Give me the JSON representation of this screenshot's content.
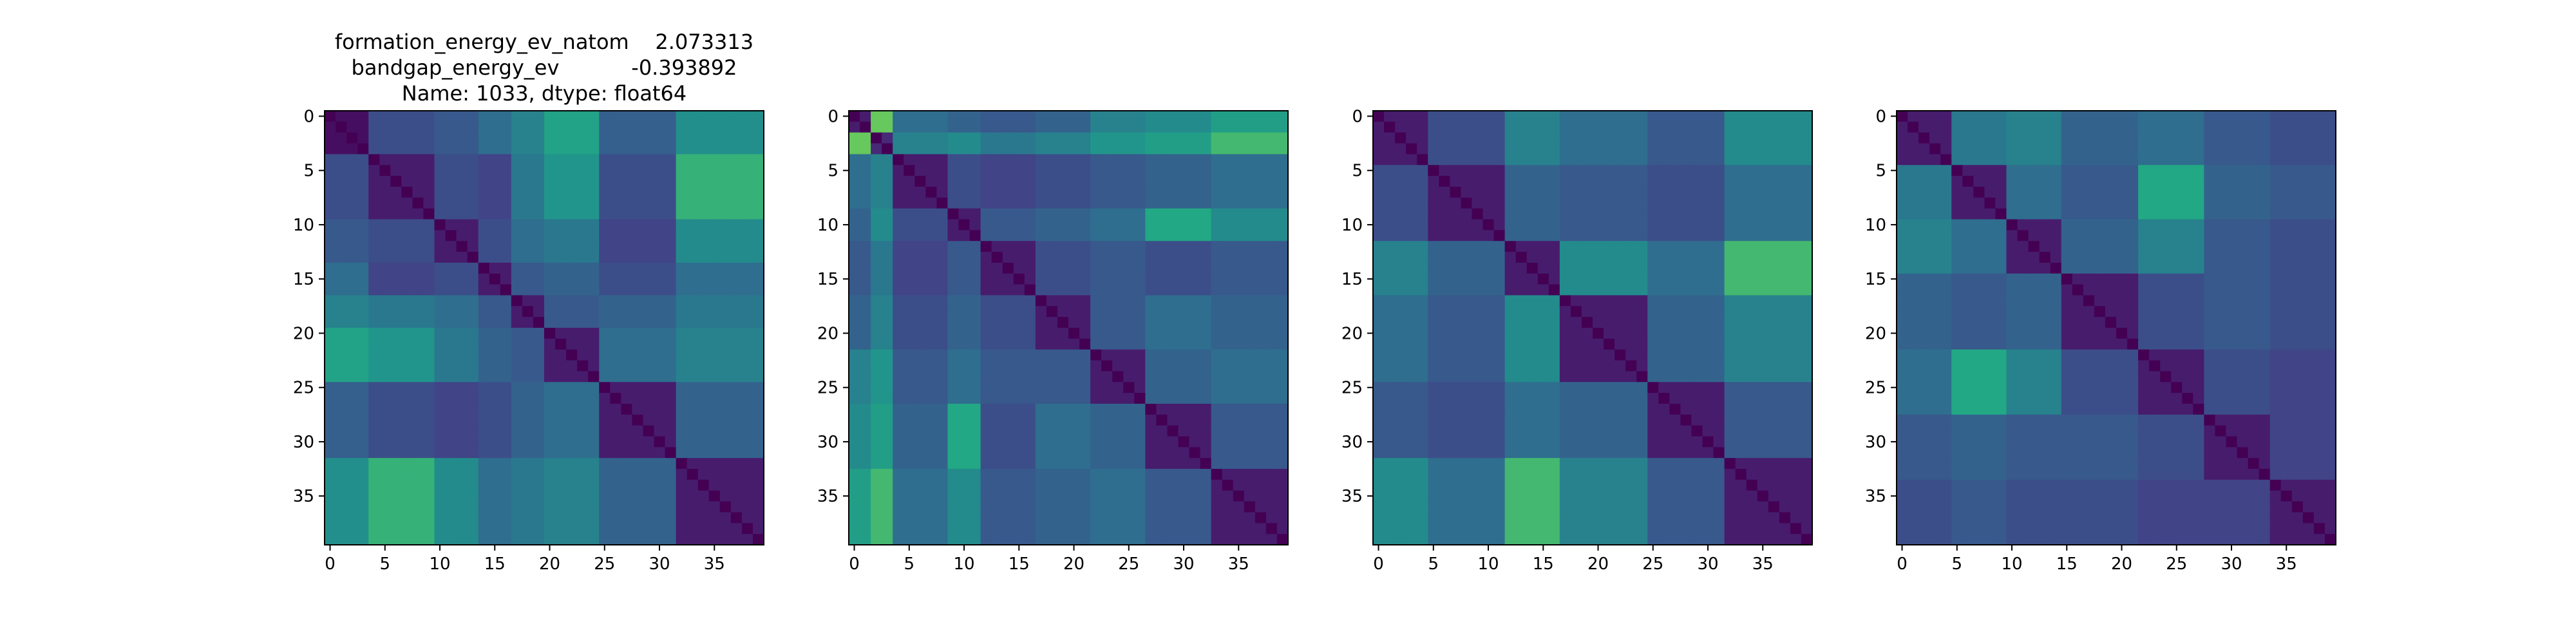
{
  "chart_data": [
    {
      "type": "heatmap",
      "title_lines": [
        "formation_energy_ev_natom    2.073313",
        "bandgap_energy_ev           -0.393892",
        "Name: 1033, dtype: float64"
      ],
      "size": 40,
      "colormap": "viridis",
      "xticks": [
        0,
        5,
        10,
        15,
        20,
        25,
        30,
        35
      ],
      "yticks": [
        0,
        5,
        10,
        15,
        20,
        25,
        30,
        35
      ],
      "blocks": [
        [
          0,
          4
        ],
        [
          4,
          10
        ],
        [
          10,
          14
        ],
        [
          14,
          17
        ],
        [
          17,
          20
        ],
        [
          20,
          25
        ],
        [
          25,
          32
        ],
        [
          32,
          40
        ]
      ],
      "block_values": [
        [
          0.05,
          0.3,
          0.35,
          0.45,
          0.55,
          0.72,
          0.38,
          0.62
        ],
        [
          0.3,
          0.1,
          0.3,
          0.25,
          0.5,
          0.65,
          0.3,
          0.78
        ],
        [
          0.35,
          0.3,
          0.1,
          0.3,
          0.45,
          0.5,
          0.25,
          0.6
        ],
        [
          0.45,
          0.25,
          0.3,
          0.1,
          0.35,
          0.4,
          0.3,
          0.45
        ],
        [
          0.55,
          0.5,
          0.45,
          0.35,
          0.1,
          0.35,
          0.4,
          0.5
        ],
        [
          0.72,
          0.65,
          0.5,
          0.4,
          0.35,
          0.1,
          0.45,
          0.55
        ],
        [
          0.38,
          0.3,
          0.25,
          0.3,
          0.4,
          0.45,
          0.1,
          0.4
        ],
        [
          0.62,
          0.78,
          0.6,
          0.45,
          0.5,
          0.55,
          0.4,
          0.1
        ]
      ]
    },
    {
      "type": "heatmap",
      "title_lines": [],
      "size": 40,
      "colormap": "viridis",
      "xticks": [
        0,
        5,
        10,
        15,
        20,
        25,
        30,
        35
      ],
      "yticks": [
        0,
        5,
        10,
        15,
        20,
        25,
        30,
        35
      ],
      "blocks": [
        [
          0,
          2
        ],
        [
          2,
          4
        ],
        [
          4,
          9
        ],
        [
          9,
          12
        ],
        [
          12,
          17
        ],
        [
          17,
          22
        ],
        [
          22,
          27
        ],
        [
          27,
          33
        ],
        [
          33,
          40
        ]
      ],
      "block_values": [
        [
          0.1,
          0.85,
          0.45,
          0.4,
          0.35,
          0.4,
          0.55,
          0.6,
          0.7
        ],
        [
          0.85,
          0.15,
          0.55,
          0.6,
          0.5,
          0.55,
          0.65,
          0.7,
          0.8
        ],
        [
          0.45,
          0.55,
          0.1,
          0.3,
          0.25,
          0.3,
          0.35,
          0.4,
          0.45
        ],
        [
          0.4,
          0.6,
          0.3,
          0.1,
          0.35,
          0.4,
          0.45,
          0.75,
          0.6
        ],
        [
          0.35,
          0.5,
          0.25,
          0.35,
          0.1,
          0.3,
          0.35,
          0.3,
          0.35
        ],
        [
          0.4,
          0.55,
          0.3,
          0.4,
          0.3,
          0.1,
          0.35,
          0.45,
          0.4
        ],
        [
          0.55,
          0.65,
          0.35,
          0.45,
          0.35,
          0.35,
          0.1,
          0.4,
          0.45
        ],
        [
          0.6,
          0.7,
          0.4,
          0.75,
          0.3,
          0.45,
          0.4,
          0.1,
          0.35
        ],
        [
          0.7,
          0.8,
          0.45,
          0.6,
          0.35,
          0.4,
          0.45,
          0.35,
          0.1
        ]
      ]
    },
    {
      "type": "heatmap",
      "title_lines": [],
      "size": 40,
      "colormap": "viridis",
      "xticks": [
        0,
        5,
        10,
        15,
        20,
        25,
        30,
        35
      ],
      "yticks": [
        0,
        5,
        10,
        15,
        20,
        25,
        30,
        35
      ],
      "blocks": [
        [
          0,
          5
        ],
        [
          5,
          12
        ],
        [
          12,
          17
        ],
        [
          17,
          25
        ],
        [
          25,
          32
        ],
        [
          32,
          40
        ]
      ],
      "block_values": [
        [
          0.1,
          0.3,
          0.55,
          0.45,
          0.35,
          0.6
        ],
        [
          0.3,
          0.1,
          0.4,
          0.35,
          0.3,
          0.45
        ],
        [
          0.55,
          0.4,
          0.1,
          0.6,
          0.45,
          0.8
        ],
        [
          0.45,
          0.35,
          0.6,
          0.1,
          0.4,
          0.55
        ],
        [
          0.35,
          0.3,
          0.45,
          0.4,
          0.1,
          0.35
        ],
        [
          0.6,
          0.45,
          0.8,
          0.55,
          0.35,
          0.1
        ]
      ]
    },
    {
      "type": "heatmap",
      "title_lines": [],
      "size": 40,
      "colormap": "viridis",
      "xticks": [
        0,
        5,
        10,
        15,
        20,
        25,
        30,
        35
      ],
      "yticks": [
        0,
        5,
        10,
        15,
        20,
        25,
        30,
        35
      ],
      "blocks": [
        [
          0,
          5
        ],
        [
          5,
          10
        ],
        [
          10,
          15
        ],
        [
          15,
          22
        ],
        [
          22,
          28
        ],
        [
          28,
          34
        ],
        [
          34,
          40
        ]
      ],
      "block_values": [
        [
          0.1,
          0.5,
          0.55,
          0.4,
          0.45,
          0.35,
          0.3
        ],
        [
          0.5,
          0.1,
          0.45,
          0.35,
          0.75,
          0.4,
          0.35
        ],
        [
          0.55,
          0.45,
          0.1,
          0.4,
          0.55,
          0.35,
          0.3
        ],
        [
          0.4,
          0.35,
          0.4,
          0.1,
          0.3,
          0.35,
          0.3
        ],
        [
          0.45,
          0.75,
          0.55,
          0.3,
          0.1,
          0.3,
          0.25
        ],
        [
          0.35,
          0.4,
          0.35,
          0.35,
          0.3,
          0.1,
          0.25
        ],
        [
          0.3,
          0.35,
          0.3,
          0.3,
          0.25,
          0.25,
          0.1
        ]
      ]
    }
  ]
}
